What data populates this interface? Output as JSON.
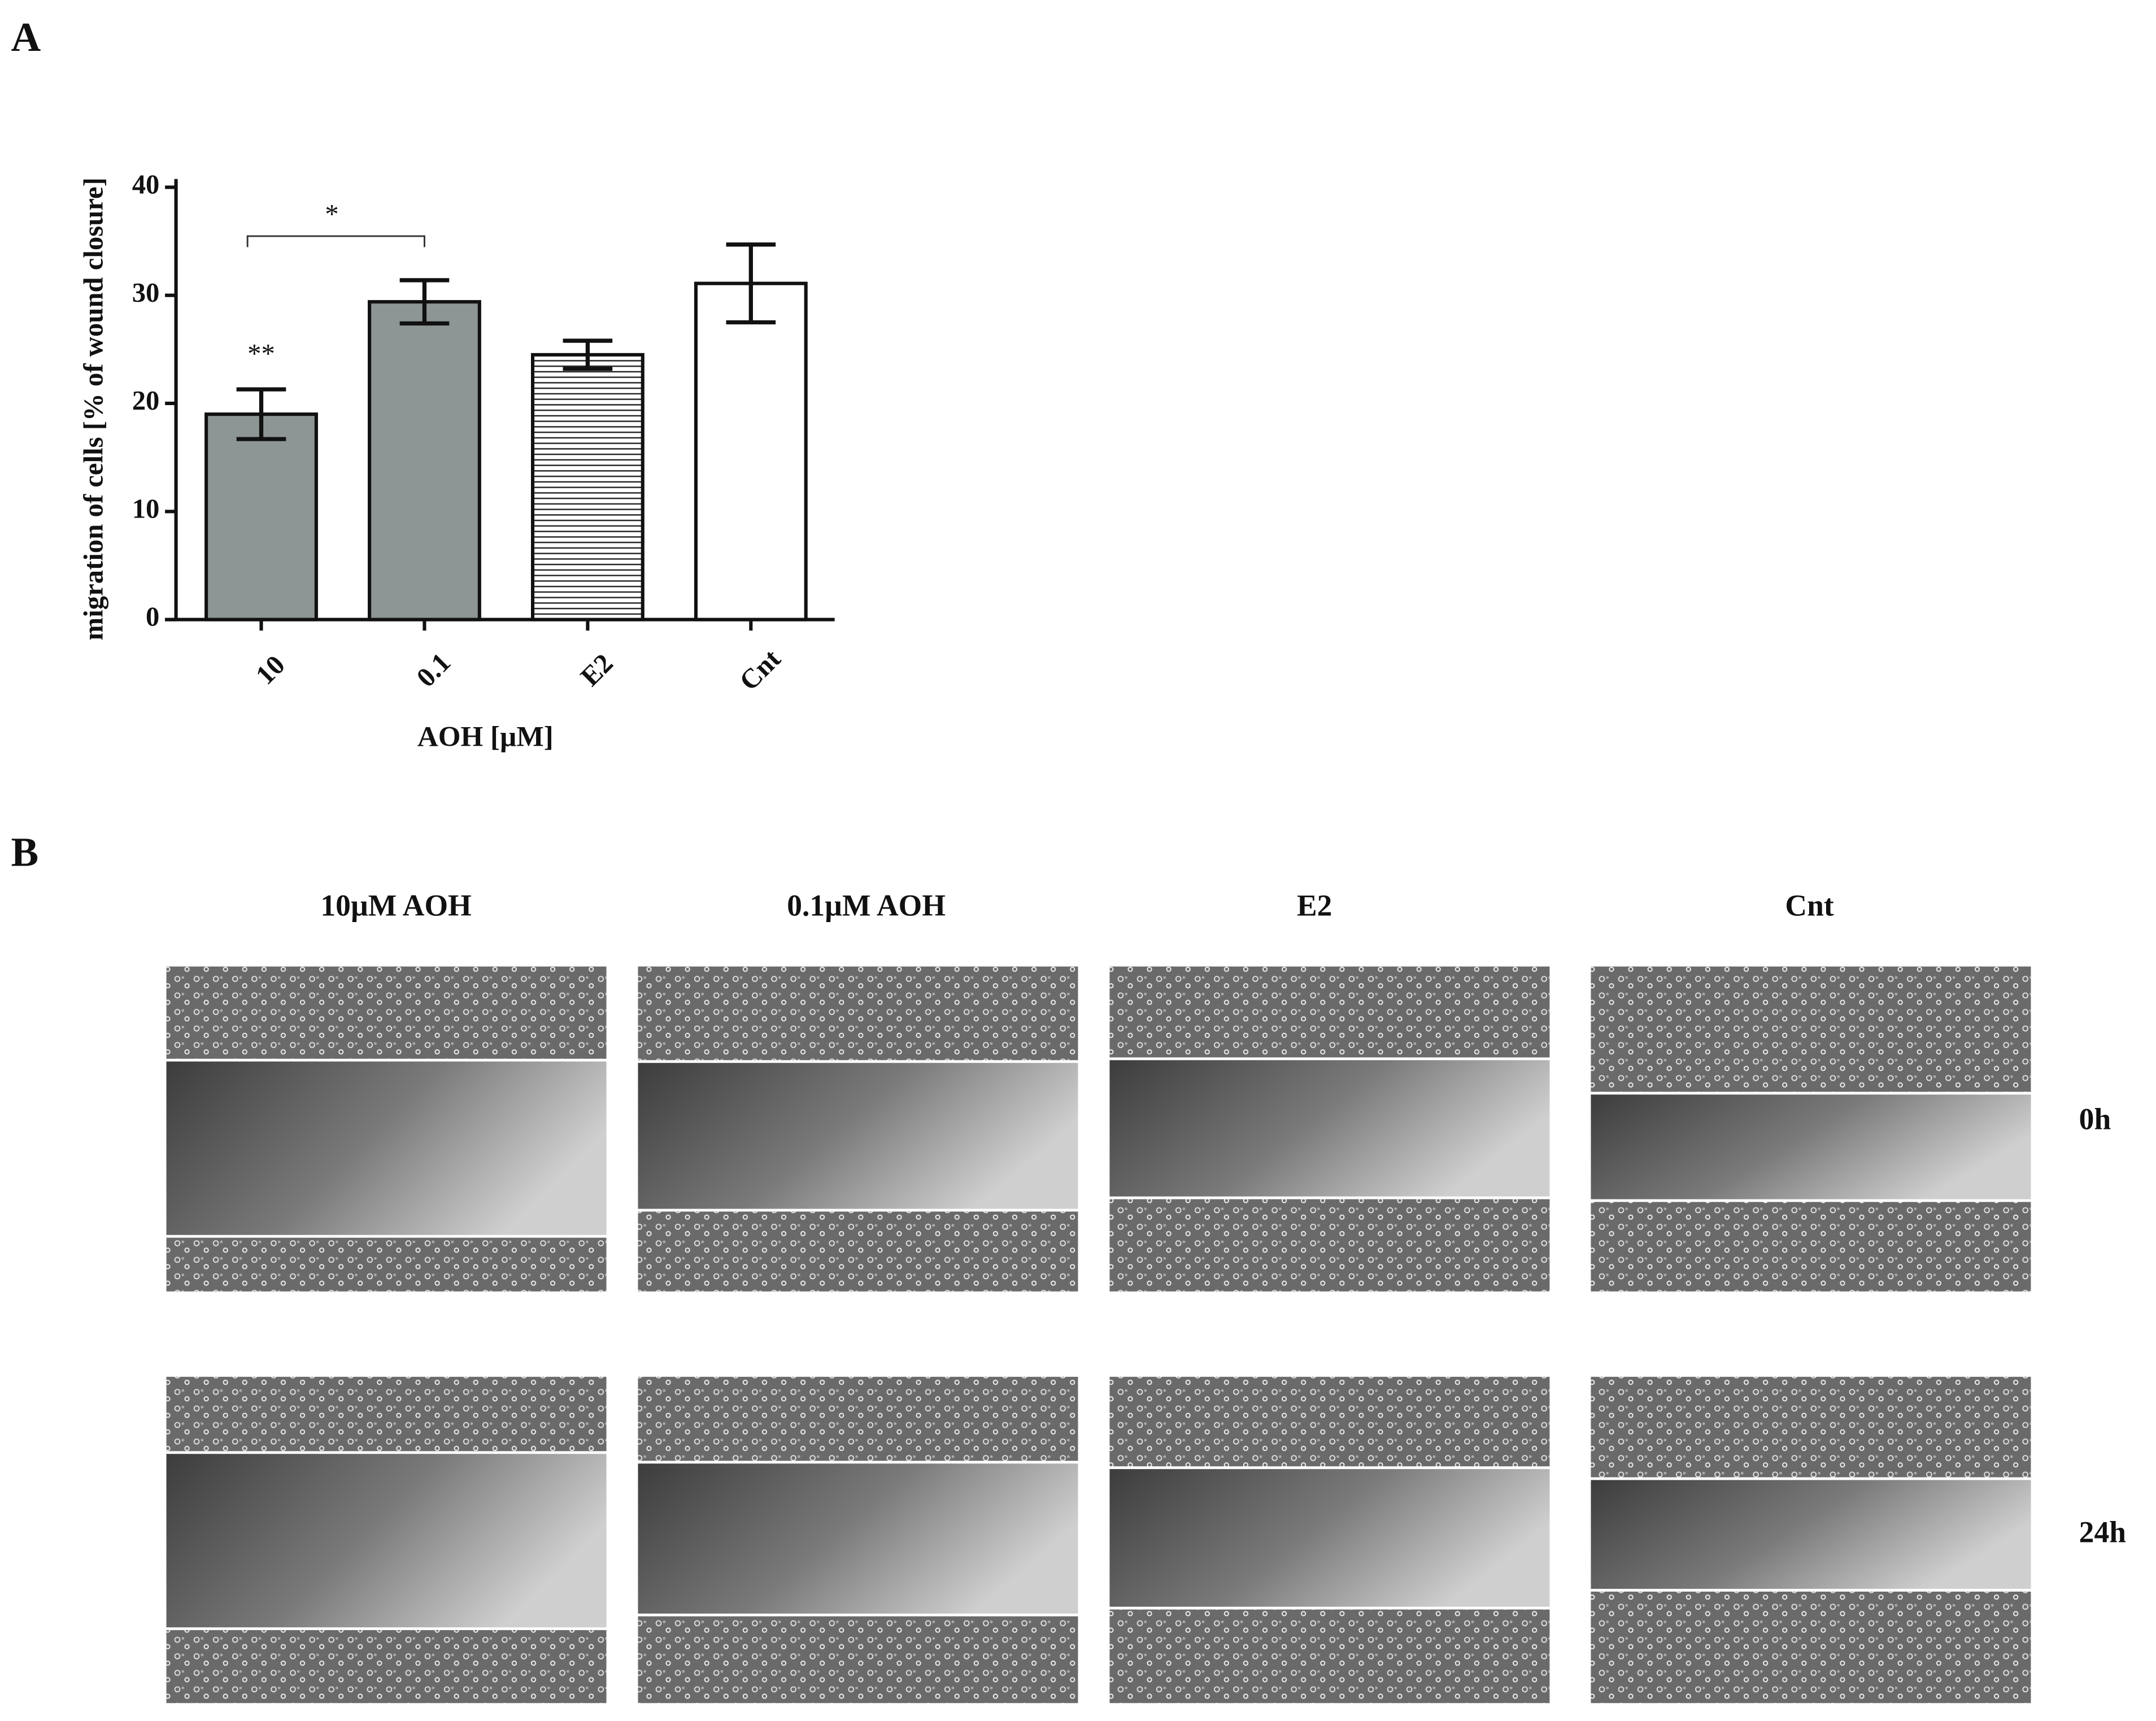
{
  "panel_a_label": "A",
  "chart_data": {
    "type": "bar",
    "categories": [
      "10",
      "0.1",
      "E2",
      "Cnt"
    ],
    "values": [
      19,
      29.4,
      24.5,
      31.1
    ],
    "errors": [
      2.3,
      2.0,
      1.3,
      3.6
    ],
    "colors": [
      "#8e9595",
      "#8e9595",
      "#ffffff",
      "#ffffff"
    ],
    "hatch": [
      false,
      false,
      true,
      false
    ],
    "x_label": "AOH [µM]",
    "y_label": "migration of cells [% of wound closure]",
    "ylim": [
      0,
      40
    ],
    "yticks": [
      0,
      10,
      20,
      30,
      40
    ],
    "annotations": [
      {
        "text": "**",
        "category": "10"
      },
      {
        "text": "*",
        "between": [
          "10",
          "0.1"
        ]
      }
    ]
  },
  "panel_b": {
    "label": "B",
    "columns": [
      "10µM AOH",
      "0.1µM AOH",
      "E2",
      "Cnt"
    ],
    "rows": [
      "0h",
      "24h"
    ]
  }
}
